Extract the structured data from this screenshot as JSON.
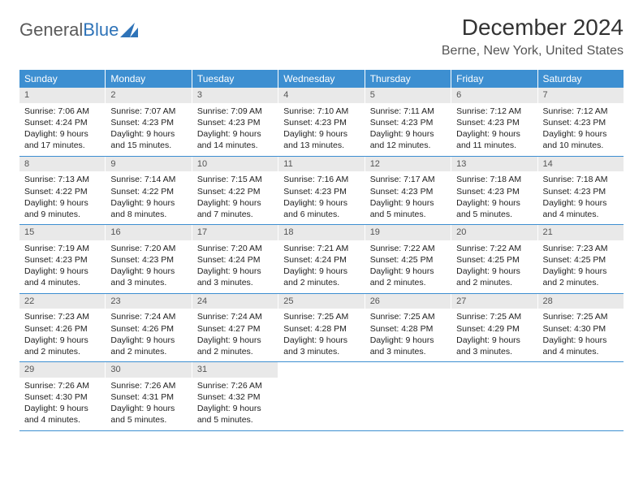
{
  "logo": {
    "part1": "General",
    "part2": "Blue"
  },
  "title": "December 2024",
  "location": "Berne, New York, United States",
  "colors": {
    "header_bg": "#3d8fd1",
    "header_text": "#ffffff",
    "daynum_bg": "#e9e9e9",
    "week_border": "#3d8fd1",
    "logo_gray": "#5a5a5a",
    "logo_blue": "#2e73b8"
  },
  "daynames": [
    "Sunday",
    "Monday",
    "Tuesday",
    "Wednesday",
    "Thursday",
    "Friday",
    "Saturday"
  ],
  "weeks": [
    [
      {
        "n": "1",
        "sr": "Sunrise: 7:06 AM",
        "ss": "Sunset: 4:24 PM",
        "d1": "Daylight: 9 hours",
        "d2": "and 17 minutes."
      },
      {
        "n": "2",
        "sr": "Sunrise: 7:07 AM",
        "ss": "Sunset: 4:23 PM",
        "d1": "Daylight: 9 hours",
        "d2": "and 15 minutes."
      },
      {
        "n": "3",
        "sr": "Sunrise: 7:09 AM",
        "ss": "Sunset: 4:23 PM",
        "d1": "Daylight: 9 hours",
        "d2": "and 14 minutes."
      },
      {
        "n": "4",
        "sr": "Sunrise: 7:10 AM",
        "ss": "Sunset: 4:23 PM",
        "d1": "Daylight: 9 hours",
        "d2": "and 13 minutes."
      },
      {
        "n": "5",
        "sr": "Sunrise: 7:11 AM",
        "ss": "Sunset: 4:23 PM",
        "d1": "Daylight: 9 hours",
        "d2": "and 12 minutes."
      },
      {
        "n": "6",
        "sr": "Sunrise: 7:12 AM",
        "ss": "Sunset: 4:23 PM",
        "d1": "Daylight: 9 hours",
        "d2": "and 11 minutes."
      },
      {
        "n": "7",
        "sr": "Sunrise: 7:12 AM",
        "ss": "Sunset: 4:23 PM",
        "d1": "Daylight: 9 hours",
        "d2": "and 10 minutes."
      }
    ],
    [
      {
        "n": "8",
        "sr": "Sunrise: 7:13 AM",
        "ss": "Sunset: 4:22 PM",
        "d1": "Daylight: 9 hours",
        "d2": "and 9 minutes."
      },
      {
        "n": "9",
        "sr": "Sunrise: 7:14 AM",
        "ss": "Sunset: 4:22 PM",
        "d1": "Daylight: 9 hours",
        "d2": "and 8 minutes."
      },
      {
        "n": "10",
        "sr": "Sunrise: 7:15 AM",
        "ss": "Sunset: 4:22 PM",
        "d1": "Daylight: 9 hours",
        "d2": "and 7 minutes."
      },
      {
        "n": "11",
        "sr": "Sunrise: 7:16 AM",
        "ss": "Sunset: 4:23 PM",
        "d1": "Daylight: 9 hours",
        "d2": "and 6 minutes."
      },
      {
        "n": "12",
        "sr": "Sunrise: 7:17 AM",
        "ss": "Sunset: 4:23 PM",
        "d1": "Daylight: 9 hours",
        "d2": "and 5 minutes."
      },
      {
        "n": "13",
        "sr": "Sunrise: 7:18 AM",
        "ss": "Sunset: 4:23 PM",
        "d1": "Daylight: 9 hours",
        "d2": "and 5 minutes."
      },
      {
        "n": "14",
        "sr": "Sunrise: 7:18 AM",
        "ss": "Sunset: 4:23 PM",
        "d1": "Daylight: 9 hours",
        "d2": "and 4 minutes."
      }
    ],
    [
      {
        "n": "15",
        "sr": "Sunrise: 7:19 AM",
        "ss": "Sunset: 4:23 PM",
        "d1": "Daylight: 9 hours",
        "d2": "and 4 minutes."
      },
      {
        "n": "16",
        "sr": "Sunrise: 7:20 AM",
        "ss": "Sunset: 4:23 PM",
        "d1": "Daylight: 9 hours",
        "d2": "and 3 minutes."
      },
      {
        "n": "17",
        "sr": "Sunrise: 7:20 AM",
        "ss": "Sunset: 4:24 PM",
        "d1": "Daylight: 9 hours",
        "d2": "and 3 minutes."
      },
      {
        "n": "18",
        "sr": "Sunrise: 7:21 AM",
        "ss": "Sunset: 4:24 PM",
        "d1": "Daylight: 9 hours",
        "d2": "and 2 minutes."
      },
      {
        "n": "19",
        "sr": "Sunrise: 7:22 AM",
        "ss": "Sunset: 4:25 PM",
        "d1": "Daylight: 9 hours",
        "d2": "and 2 minutes."
      },
      {
        "n": "20",
        "sr": "Sunrise: 7:22 AM",
        "ss": "Sunset: 4:25 PM",
        "d1": "Daylight: 9 hours",
        "d2": "and 2 minutes."
      },
      {
        "n": "21",
        "sr": "Sunrise: 7:23 AM",
        "ss": "Sunset: 4:25 PM",
        "d1": "Daylight: 9 hours",
        "d2": "and 2 minutes."
      }
    ],
    [
      {
        "n": "22",
        "sr": "Sunrise: 7:23 AM",
        "ss": "Sunset: 4:26 PM",
        "d1": "Daylight: 9 hours",
        "d2": "and 2 minutes."
      },
      {
        "n": "23",
        "sr": "Sunrise: 7:24 AM",
        "ss": "Sunset: 4:26 PM",
        "d1": "Daylight: 9 hours",
        "d2": "and 2 minutes."
      },
      {
        "n": "24",
        "sr": "Sunrise: 7:24 AM",
        "ss": "Sunset: 4:27 PM",
        "d1": "Daylight: 9 hours",
        "d2": "and 2 minutes."
      },
      {
        "n": "25",
        "sr": "Sunrise: 7:25 AM",
        "ss": "Sunset: 4:28 PM",
        "d1": "Daylight: 9 hours",
        "d2": "and 3 minutes."
      },
      {
        "n": "26",
        "sr": "Sunrise: 7:25 AM",
        "ss": "Sunset: 4:28 PM",
        "d1": "Daylight: 9 hours",
        "d2": "and 3 minutes."
      },
      {
        "n": "27",
        "sr": "Sunrise: 7:25 AM",
        "ss": "Sunset: 4:29 PM",
        "d1": "Daylight: 9 hours",
        "d2": "and 3 minutes."
      },
      {
        "n": "28",
        "sr": "Sunrise: 7:25 AM",
        "ss": "Sunset: 4:30 PM",
        "d1": "Daylight: 9 hours",
        "d2": "and 4 minutes."
      }
    ],
    [
      {
        "n": "29",
        "sr": "Sunrise: 7:26 AM",
        "ss": "Sunset: 4:30 PM",
        "d1": "Daylight: 9 hours",
        "d2": "and 4 minutes."
      },
      {
        "n": "30",
        "sr": "Sunrise: 7:26 AM",
        "ss": "Sunset: 4:31 PM",
        "d1": "Daylight: 9 hours",
        "d2": "and 5 minutes."
      },
      {
        "n": "31",
        "sr": "Sunrise: 7:26 AM",
        "ss": "Sunset: 4:32 PM",
        "d1": "Daylight: 9 hours",
        "d2": "and 5 minutes."
      },
      {
        "empty": true
      },
      {
        "empty": true
      },
      {
        "empty": true
      },
      {
        "empty": true
      }
    ]
  ]
}
